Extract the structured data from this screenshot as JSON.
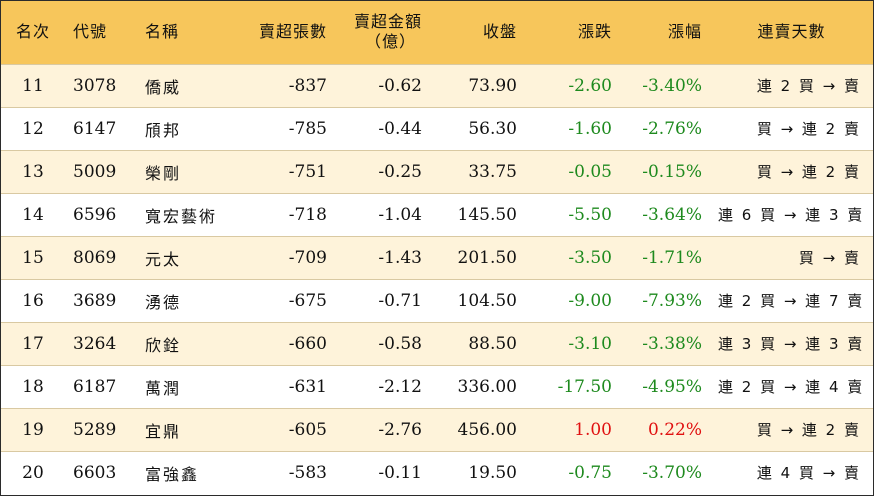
{
  "columns": {
    "rank": "名次",
    "code": "代號",
    "name": "名稱",
    "sell_lots": "賣超張數",
    "sell_amount_line1": "賣超金額",
    "sell_amount_line2": "（億）",
    "close": "收盤",
    "change": "漲跌",
    "pct": "漲幅",
    "trend": "連賣天數"
  },
  "colors": {
    "header_bg": "#f7c65b",
    "odd_row_bg": "#fef3da",
    "down": "#1e8a1e",
    "up": "#e01010"
  },
  "rows": [
    {
      "rank": "11",
      "code": "3078",
      "name": "僑威",
      "sell_lots": "-837",
      "sell_amount": "-0.62",
      "close": "73.90",
      "change": "-2.60",
      "pct": "-3.40%",
      "trend": "連 2 買 → 賣",
      "dir": "down"
    },
    {
      "rank": "12",
      "code": "6147",
      "name": "頎邦",
      "sell_lots": "-785",
      "sell_amount": "-0.44",
      "close": "56.30",
      "change": "-1.60",
      "pct": "-2.76%",
      "trend": "買 → 連 2 賣",
      "dir": "down"
    },
    {
      "rank": "13",
      "code": "5009",
      "name": "榮剛",
      "sell_lots": "-751",
      "sell_amount": "-0.25",
      "close": "33.75",
      "change": "-0.05",
      "pct": "-0.15%",
      "trend": "買 → 連 2 賣",
      "dir": "down"
    },
    {
      "rank": "14",
      "code": "6596",
      "name": "寬宏藝術",
      "sell_lots": "-718",
      "sell_amount": "-1.04",
      "close": "145.50",
      "change": "-5.50",
      "pct": "-3.64%",
      "trend": "連 6 買 → 連 3 賣",
      "dir": "down"
    },
    {
      "rank": "15",
      "code": "8069",
      "name": "元太",
      "sell_lots": "-709",
      "sell_amount": "-1.43",
      "close": "201.50",
      "change": "-3.50",
      "pct": "-1.71%",
      "trend": "買 → 賣",
      "dir": "down"
    },
    {
      "rank": "16",
      "code": "3689",
      "name": "湧德",
      "sell_lots": "-675",
      "sell_amount": "-0.71",
      "close": "104.50",
      "change": "-9.00",
      "pct": "-7.93%",
      "trend": "連 2 買 → 連 7 賣",
      "dir": "down"
    },
    {
      "rank": "17",
      "code": "3264",
      "name": "欣銓",
      "sell_lots": "-660",
      "sell_amount": "-0.58",
      "close": "88.50",
      "change": "-3.10",
      "pct": "-3.38%",
      "trend": "連 3 買 → 連 3 賣",
      "dir": "down"
    },
    {
      "rank": "18",
      "code": "6187",
      "name": "萬潤",
      "sell_lots": "-631",
      "sell_amount": "-2.12",
      "close": "336.00",
      "change": "-17.50",
      "pct": "-4.95%",
      "trend": "連 2 買 → 連 4 賣",
      "dir": "down"
    },
    {
      "rank": "19",
      "code": "5289",
      "name": "宜鼎",
      "sell_lots": "-605",
      "sell_amount": "-2.76",
      "close": "456.00",
      "change": "1.00",
      "pct": "0.22%",
      "trend": "買 → 連 2 賣",
      "dir": "up"
    },
    {
      "rank": "20",
      "code": "6603",
      "name": "富強鑫",
      "sell_lots": "-583",
      "sell_amount": "-0.11",
      "close": "19.50",
      "change": "-0.75",
      "pct": "-3.70%",
      "trend": "連 4 買 → 賣",
      "dir": "down"
    }
  ]
}
